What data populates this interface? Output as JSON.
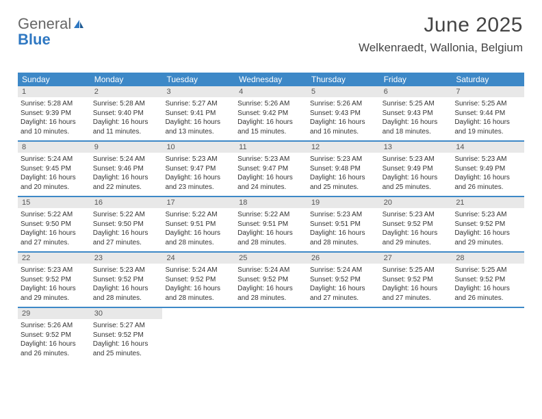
{
  "logo": {
    "text1": "General",
    "text2": "Blue"
  },
  "header": {
    "month_year": "June 2025",
    "location": "Welkenraedt, Wallonia, Belgium"
  },
  "colors": {
    "header_bg": "#3d88c7",
    "header_text": "#ffffff",
    "day_number_bg": "#e8e8e8",
    "border": "#3d88c7"
  },
  "day_names": [
    "Sunday",
    "Monday",
    "Tuesday",
    "Wednesday",
    "Thursday",
    "Friday",
    "Saturday"
  ],
  "days": [
    {
      "n": "1",
      "sr": "5:28 AM",
      "ss": "9:39 PM",
      "dl": "16 hours and 10 minutes."
    },
    {
      "n": "2",
      "sr": "5:28 AM",
      "ss": "9:40 PM",
      "dl": "16 hours and 11 minutes."
    },
    {
      "n": "3",
      "sr": "5:27 AM",
      "ss": "9:41 PM",
      "dl": "16 hours and 13 minutes."
    },
    {
      "n": "4",
      "sr": "5:26 AM",
      "ss": "9:42 PM",
      "dl": "16 hours and 15 minutes."
    },
    {
      "n": "5",
      "sr": "5:26 AM",
      "ss": "9:43 PM",
      "dl": "16 hours and 16 minutes."
    },
    {
      "n": "6",
      "sr": "5:25 AM",
      "ss": "9:43 PM",
      "dl": "16 hours and 18 minutes."
    },
    {
      "n": "7",
      "sr": "5:25 AM",
      "ss": "9:44 PM",
      "dl": "16 hours and 19 minutes."
    },
    {
      "n": "8",
      "sr": "5:24 AM",
      "ss": "9:45 PM",
      "dl": "16 hours and 20 minutes."
    },
    {
      "n": "9",
      "sr": "5:24 AM",
      "ss": "9:46 PM",
      "dl": "16 hours and 22 minutes."
    },
    {
      "n": "10",
      "sr": "5:23 AM",
      "ss": "9:47 PM",
      "dl": "16 hours and 23 minutes."
    },
    {
      "n": "11",
      "sr": "5:23 AM",
      "ss": "9:47 PM",
      "dl": "16 hours and 24 minutes."
    },
    {
      "n": "12",
      "sr": "5:23 AM",
      "ss": "9:48 PM",
      "dl": "16 hours and 25 minutes."
    },
    {
      "n": "13",
      "sr": "5:23 AM",
      "ss": "9:49 PM",
      "dl": "16 hours and 25 minutes."
    },
    {
      "n": "14",
      "sr": "5:23 AM",
      "ss": "9:49 PM",
      "dl": "16 hours and 26 minutes."
    },
    {
      "n": "15",
      "sr": "5:22 AM",
      "ss": "9:50 PM",
      "dl": "16 hours and 27 minutes."
    },
    {
      "n": "16",
      "sr": "5:22 AM",
      "ss": "9:50 PM",
      "dl": "16 hours and 27 minutes."
    },
    {
      "n": "17",
      "sr": "5:22 AM",
      "ss": "9:51 PM",
      "dl": "16 hours and 28 minutes."
    },
    {
      "n": "18",
      "sr": "5:22 AM",
      "ss": "9:51 PM",
      "dl": "16 hours and 28 minutes."
    },
    {
      "n": "19",
      "sr": "5:23 AM",
      "ss": "9:51 PM",
      "dl": "16 hours and 28 minutes."
    },
    {
      "n": "20",
      "sr": "5:23 AM",
      "ss": "9:52 PM",
      "dl": "16 hours and 29 minutes."
    },
    {
      "n": "21",
      "sr": "5:23 AM",
      "ss": "9:52 PM",
      "dl": "16 hours and 29 minutes."
    },
    {
      "n": "22",
      "sr": "5:23 AM",
      "ss": "9:52 PM",
      "dl": "16 hours and 29 minutes."
    },
    {
      "n": "23",
      "sr": "5:23 AM",
      "ss": "9:52 PM",
      "dl": "16 hours and 28 minutes."
    },
    {
      "n": "24",
      "sr": "5:24 AM",
      "ss": "9:52 PM",
      "dl": "16 hours and 28 minutes."
    },
    {
      "n": "25",
      "sr": "5:24 AM",
      "ss": "9:52 PM",
      "dl": "16 hours and 28 minutes."
    },
    {
      "n": "26",
      "sr": "5:24 AM",
      "ss": "9:52 PM",
      "dl": "16 hours and 27 minutes."
    },
    {
      "n": "27",
      "sr": "5:25 AM",
      "ss": "9:52 PM",
      "dl": "16 hours and 27 minutes."
    },
    {
      "n": "28",
      "sr": "5:25 AM",
      "ss": "9:52 PM",
      "dl": "16 hours and 26 minutes."
    },
    {
      "n": "29",
      "sr": "5:26 AM",
      "ss": "9:52 PM",
      "dl": "16 hours and 26 minutes."
    },
    {
      "n": "30",
      "sr": "5:27 AM",
      "ss": "9:52 PM",
      "dl": "16 hours and 25 minutes."
    }
  ],
  "labels": {
    "sunrise": "Sunrise:",
    "sunset": "Sunset:",
    "daylight": "Daylight:"
  }
}
